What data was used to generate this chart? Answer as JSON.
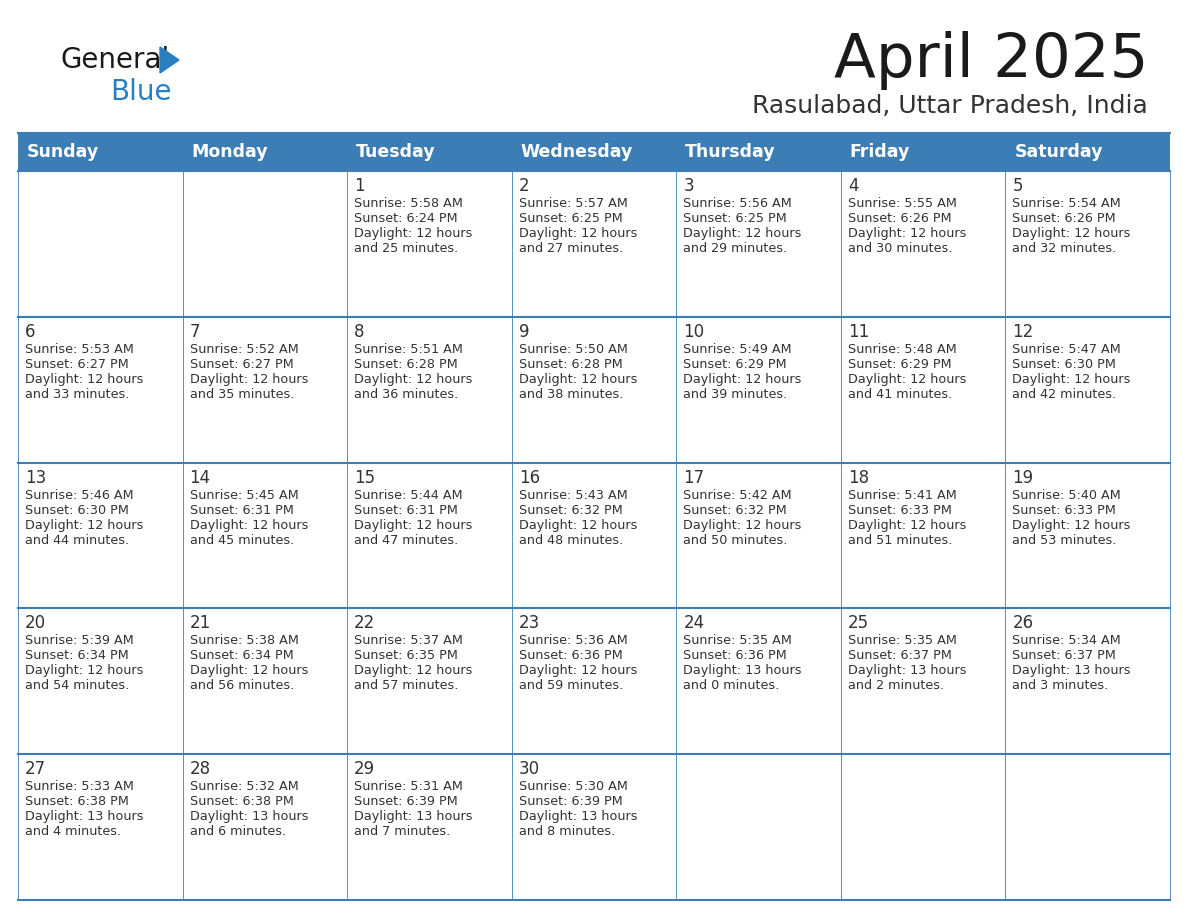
{
  "title": "April 2025",
  "subtitle": "Rasulabad, Uttar Pradesh, India",
  "header_bg": "#3d7db5",
  "header_text_color": "#ffffff",
  "cell_bg": "#ffffff",
  "cell_bg_alt": "#f0f4f8",
  "border_color": "#3d7db5",
  "text_color": "#333333",
  "days_of_week": [
    "Sunday",
    "Monday",
    "Tuesday",
    "Wednesday",
    "Thursday",
    "Friday",
    "Saturday"
  ],
  "calendar_data": [
    [
      {
        "day": "",
        "sunrise": "",
        "sunset": "",
        "daylight_h": "",
        "daylight_m": ""
      },
      {
        "day": "",
        "sunrise": "",
        "sunset": "",
        "daylight_h": "",
        "daylight_m": ""
      },
      {
        "day": "1",
        "sunrise": "5:58 AM",
        "sunset": "6:24 PM",
        "daylight_h": "12",
        "daylight_m": "25"
      },
      {
        "day": "2",
        "sunrise": "5:57 AM",
        "sunset": "6:25 PM",
        "daylight_h": "12",
        "daylight_m": "27"
      },
      {
        "day": "3",
        "sunrise": "5:56 AM",
        "sunset": "6:25 PM",
        "daylight_h": "12",
        "daylight_m": "29"
      },
      {
        "day": "4",
        "sunrise": "5:55 AM",
        "sunset": "6:26 PM",
        "daylight_h": "12",
        "daylight_m": "30"
      },
      {
        "day": "5",
        "sunrise": "5:54 AM",
        "sunset": "6:26 PM",
        "daylight_h": "12",
        "daylight_m": "32"
      }
    ],
    [
      {
        "day": "6",
        "sunrise": "5:53 AM",
        "sunset": "6:27 PM",
        "daylight_h": "12",
        "daylight_m": "33"
      },
      {
        "day": "7",
        "sunrise": "5:52 AM",
        "sunset": "6:27 PM",
        "daylight_h": "12",
        "daylight_m": "35"
      },
      {
        "day": "8",
        "sunrise": "5:51 AM",
        "sunset": "6:28 PM",
        "daylight_h": "12",
        "daylight_m": "36"
      },
      {
        "day": "9",
        "sunrise": "5:50 AM",
        "sunset": "6:28 PM",
        "daylight_h": "12",
        "daylight_m": "38"
      },
      {
        "day": "10",
        "sunrise": "5:49 AM",
        "sunset": "6:29 PM",
        "daylight_h": "12",
        "daylight_m": "39"
      },
      {
        "day": "11",
        "sunrise": "5:48 AM",
        "sunset": "6:29 PM",
        "daylight_h": "12",
        "daylight_m": "41"
      },
      {
        "day": "12",
        "sunrise": "5:47 AM",
        "sunset": "6:30 PM",
        "daylight_h": "12",
        "daylight_m": "42"
      }
    ],
    [
      {
        "day": "13",
        "sunrise": "5:46 AM",
        "sunset": "6:30 PM",
        "daylight_h": "12",
        "daylight_m": "44"
      },
      {
        "day": "14",
        "sunrise": "5:45 AM",
        "sunset": "6:31 PM",
        "daylight_h": "12",
        "daylight_m": "45"
      },
      {
        "day": "15",
        "sunrise": "5:44 AM",
        "sunset": "6:31 PM",
        "daylight_h": "12",
        "daylight_m": "47"
      },
      {
        "day": "16",
        "sunrise": "5:43 AM",
        "sunset": "6:32 PM",
        "daylight_h": "12",
        "daylight_m": "48"
      },
      {
        "day": "17",
        "sunrise": "5:42 AM",
        "sunset": "6:32 PM",
        "daylight_h": "12",
        "daylight_m": "50"
      },
      {
        "day": "18",
        "sunrise": "5:41 AM",
        "sunset": "6:33 PM",
        "daylight_h": "12",
        "daylight_m": "51"
      },
      {
        "day": "19",
        "sunrise": "5:40 AM",
        "sunset": "6:33 PM",
        "daylight_h": "12",
        "daylight_m": "53"
      }
    ],
    [
      {
        "day": "20",
        "sunrise": "5:39 AM",
        "sunset": "6:34 PM",
        "daylight_h": "12",
        "daylight_m": "54"
      },
      {
        "day": "21",
        "sunrise": "5:38 AM",
        "sunset": "6:34 PM",
        "daylight_h": "12",
        "daylight_m": "56"
      },
      {
        "day": "22",
        "sunrise": "5:37 AM",
        "sunset": "6:35 PM",
        "daylight_h": "12",
        "daylight_m": "57"
      },
      {
        "day": "23",
        "sunrise": "5:36 AM",
        "sunset": "6:36 PM",
        "daylight_h": "12",
        "daylight_m": "59"
      },
      {
        "day": "24",
        "sunrise": "5:35 AM",
        "sunset": "6:36 PM",
        "daylight_h": "13",
        "daylight_m": "0"
      },
      {
        "day": "25",
        "sunrise": "5:35 AM",
        "sunset": "6:37 PM",
        "daylight_h": "13",
        "daylight_m": "2"
      },
      {
        "day": "26",
        "sunrise": "5:34 AM",
        "sunset": "6:37 PM",
        "daylight_h": "13",
        "daylight_m": "3"
      }
    ],
    [
      {
        "day": "27",
        "sunrise": "5:33 AM",
        "sunset": "6:38 PM",
        "daylight_h": "13",
        "daylight_m": "4"
      },
      {
        "day": "28",
        "sunrise": "5:32 AM",
        "sunset": "6:38 PM",
        "daylight_h": "13",
        "daylight_m": "6"
      },
      {
        "day": "29",
        "sunrise": "5:31 AM",
        "sunset": "6:39 PM",
        "daylight_h": "13",
        "daylight_m": "7"
      },
      {
        "day": "30",
        "sunrise": "5:30 AM",
        "sunset": "6:39 PM",
        "daylight_h": "13",
        "daylight_m": "8"
      },
      {
        "day": "",
        "sunrise": "",
        "sunset": "",
        "daylight_h": "",
        "daylight_m": ""
      },
      {
        "day": "",
        "sunrise": "",
        "sunset": "",
        "daylight_h": "",
        "daylight_m": ""
      },
      {
        "day": "",
        "sunrise": "",
        "sunset": "",
        "daylight_h": "",
        "daylight_m": ""
      }
    ]
  ],
  "logo_text1": "General",
  "logo_text2": "Blue",
  "logo_color1": "#1a1a1a",
  "logo_color2": "#2a7fc1",
  "logo_tri_color": "#2a7fc1"
}
